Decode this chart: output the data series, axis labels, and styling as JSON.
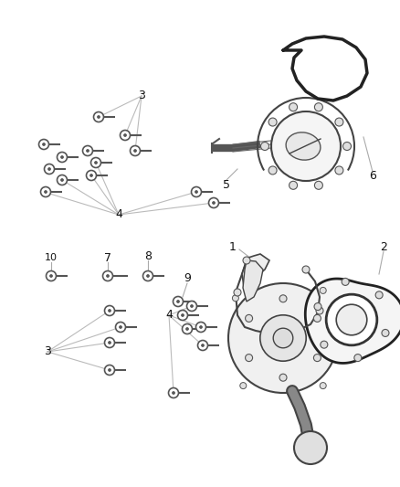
{
  "background_color": "#ffffff",
  "fig_width": 4.38,
  "fig_height": 5.33,
  "dpi": 100,
  "line_color": "#444444",
  "label_color": "#111111",
  "screw_color": "#555555",
  "fan_line_color": "#aaaaaa"
}
